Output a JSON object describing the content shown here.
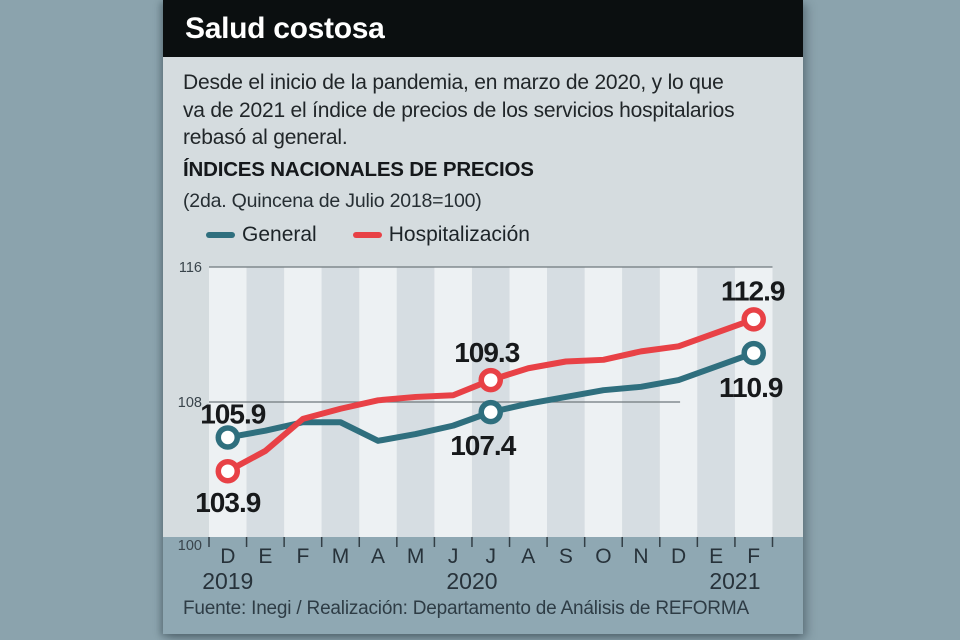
{
  "header": {
    "title": "Salud costosa"
  },
  "intro": {
    "lines": [
      "Desde el inicio de la pandemia, en marzo de 2020, y lo que",
      "va de 2021 el índice de precios de los servicios hospitalarios",
      "rebasó al general."
    ]
  },
  "chart_header": {
    "title": "ÍNDICES NACIONALES DE PRECIOS",
    "subtitle": "(2da. Quincena de Julio 2018=100)"
  },
  "legend": [
    {
      "label": "General",
      "color": "#2f6f7e"
    },
    {
      "label": "Hospitalización",
      "color": "#e84146"
    }
  ],
  "footer": {
    "source": "Fuente: Inegi / Realización: Departamento de Análisis de REFORMA"
  },
  "colors": {
    "outer_bg": "#8ba3ad",
    "card_bg": "#d5dcdf",
    "title_bar_bg": "#0b0f10",
    "band_light": "#edf1f3",
    "band_dark": "#d6dde2",
    "footer_band_bg": "#8fa8b3",
    "gridline": "#6f787d",
    "tick": "#333f46",
    "axis_text": "#39444b",
    "month_text": "#27323a",
    "data_label_text": "#17191b",
    "general_line": "#2f6f7e",
    "hospitalizacion_line": "#e84146",
    "marker_fill": "#ffffff"
  },
  "chart_data": {
    "type": "line",
    "title": "ÍNDICES NACIONALES DE PRECIOS",
    "subtitle": "(2da. Quincena de Julio 2018=100)",
    "x_labels": [
      "D",
      "E",
      "F",
      "M",
      "A",
      "M",
      "J",
      "J",
      "A",
      "S",
      "O",
      "N",
      "D",
      "E",
      "F"
    ],
    "year_labels": [
      {
        "label": "2019",
        "band_pos": 0.5
      },
      {
        "label": "2020",
        "band_pos": 7
      },
      {
        "label": "2021",
        "band_pos": 14
      }
    ],
    "y_ticks": [
      100,
      108,
      116
    ],
    "ylim": [
      100,
      116
    ],
    "gridlines": [
      {
        "value": 116,
        "width_frac": 1
      },
      {
        "value": 108,
        "width_frac": 0.836
      }
    ],
    "legend_position": "top-left",
    "grid": "horizontal-sparse",
    "marker_indices": [
      0,
      7,
      14
    ],
    "series": [
      {
        "name": "General",
        "color": "#2f6f7e",
        "values": [
          105.9,
          106.3,
          106.8,
          106.8,
          105.7,
          106.1,
          106.6,
          107.4,
          107.9,
          108.3,
          108.7,
          108.9,
          109.3,
          110.1,
          110.9
        ]
      },
      {
        "name": "Hospitalización",
        "color": "#e84146",
        "values": [
          103.9,
          105.1,
          107.0,
          107.6,
          108.1,
          108.3,
          108.4,
          109.3,
          110.0,
          110.4,
          110.5,
          111.0,
          111.3,
          112.1,
          112.9
        ]
      }
    ],
    "annotations": [
      {
        "text": "105.9",
        "series": 0,
        "index": 0
      },
      {
        "text": "103.9",
        "series": 1,
        "index": 0
      },
      {
        "text": "109.3",
        "series": 1,
        "index": 7
      },
      {
        "text": "107.4",
        "series": 0,
        "index": 7
      },
      {
        "text": "112.9",
        "series": 1,
        "index": 14
      },
      {
        "text": "110.9",
        "series": 0,
        "index": 14
      }
    ]
  }
}
